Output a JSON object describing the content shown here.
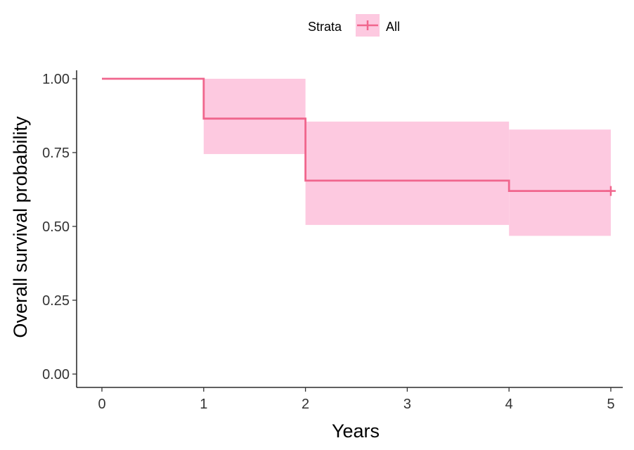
{
  "chart_data": {
    "type": "line",
    "subtype": "kaplan-meier-step",
    "xlabel": "Years",
    "ylabel": "Overall survival probability",
    "xlim": [
      0,
      5
    ],
    "ylim": [
      0,
      1
    ],
    "x_ticks": [
      0,
      1,
      2,
      3,
      4,
      5
    ],
    "x_tick_labels": [
      "0",
      "1",
      "2",
      "3",
      "4",
      "5"
    ],
    "y_ticks": [
      0,
      0.25,
      0.5,
      0.75,
      1
    ],
    "y_tick_labels": [
      "0.00",
      "0.25",
      "0.50",
      "0.75",
      "1.00"
    ],
    "grid": false,
    "legend": {
      "title": "Strata",
      "position": "top",
      "entries": [
        "All"
      ]
    },
    "series": [
      {
        "name": "All",
        "color": "#f0668d",
        "ci_color": "#fdc9e0",
        "steps": [
          {
            "x": 0,
            "y": 1.0,
            "lower": 1.0,
            "upper": 1.0
          },
          {
            "x": 1,
            "y": 0.865,
            "lower": 0.745,
            "upper": 1.0
          },
          {
            "x": 2,
            "y": 0.655,
            "lower": 0.505,
            "upper": 0.855
          },
          {
            "x": 4,
            "y": 0.62,
            "lower": 0.468,
            "upper": 0.828
          }
        ],
        "end_x": 5,
        "censor_points": [
          {
            "x": 5,
            "y": 0.62
          }
        ]
      }
    ]
  }
}
